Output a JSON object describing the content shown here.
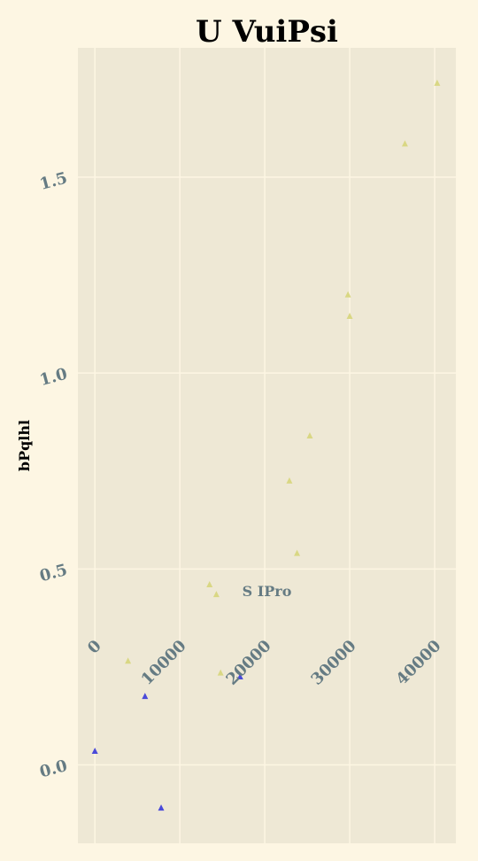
{
  "chart_data": {
    "type": "scatter",
    "title": "U VuiPsi",
    "xlabel": "S IPro",
    "ylabel": "bPqlhl",
    "xlim": [
      -2000,
      42500
    ],
    "ylim": [
      -0.2,
      1.83
    ],
    "xticks": [
      0,
      10000,
      20000,
      30000,
      40000
    ],
    "yticks": [
      0.0,
      0.5,
      1.0,
      1.5
    ],
    "xtick_labels": [
      "0",
      "10000",
      "20000",
      "30000",
      "40000"
    ],
    "ytick_labels": [
      "0.0",
      "0.5",
      "1.0",
      "1.5"
    ],
    "grid": true,
    "marker": "triangle",
    "colors": {
      "background": "#fdf6e3",
      "plot_area": "#eee8d5",
      "grid": "#fdf6e3",
      "tick_text": "#657b83"
    },
    "series": [
      {
        "color": "#d9d784",
        "points": [
          {
            "x": 3900,
            "y": 0.265
          },
          {
            "x": 13500,
            "y": 0.46
          },
          {
            "x": 14300,
            "y": 0.435
          },
          {
            "x": 14800,
            "y": 0.235
          },
          {
            "x": 22900,
            "y": 0.725
          },
          {
            "x": 23800,
            "y": 0.54
          },
          {
            "x": 25300,
            "y": 0.84
          },
          {
            "x": 29800,
            "y": 1.2
          },
          {
            "x": 30000,
            "y": 1.145
          },
          {
            "x": 36500,
            "y": 1.585
          },
          {
            "x": 40300,
            "y": 1.74
          }
        ]
      },
      {
        "color": "#4a4ad9",
        "points": [
          {
            "x": 0,
            "y": 0.035
          },
          {
            "x": 5900,
            "y": 0.175
          },
          {
            "x": 7800,
            "y": -0.11
          },
          {
            "x": 17100,
            "y": 0.225
          }
        ]
      }
    ]
  }
}
